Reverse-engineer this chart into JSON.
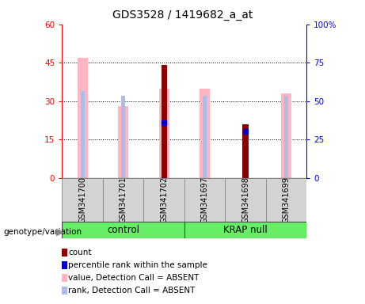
{
  "title": "GDS3528 / 1419682_a_at",
  "samples": [
    "GSM341700",
    "GSM341701",
    "GSM341702",
    "GSM341697",
    "GSM341698",
    "GSM341699"
  ],
  "ylim_left": [
    0,
    60
  ],
  "ylim_right": [
    0,
    100
  ],
  "yticks_left": [
    0,
    15,
    30,
    45,
    60
  ],
  "yticks_right": [
    0,
    25,
    50,
    75,
    100
  ],
  "count_color": "#8b0000",
  "percentile_color": "#0000cc",
  "value_absent_color": "#ffb6c1",
  "rank_absent_color": "#b0bce8",
  "count_values": [
    null,
    null,
    44,
    null,
    21,
    null
  ],
  "percentile_values": [
    null,
    null,
    36,
    null,
    30,
    null
  ],
  "value_absent": [
    47,
    28,
    35,
    35,
    null,
    33
  ],
  "rank_absent": [
    34,
    32,
    36,
    32,
    null,
    32
  ],
  "legend_items": [
    [
      "#8b0000",
      "count"
    ],
    [
      "#0000cc",
      "percentile rank within the sample"
    ],
    [
      "#ffb6c1",
      "value, Detection Call = ABSENT"
    ],
    [
      "#b0bce8",
      "rank, Detection Call = ABSENT"
    ]
  ]
}
